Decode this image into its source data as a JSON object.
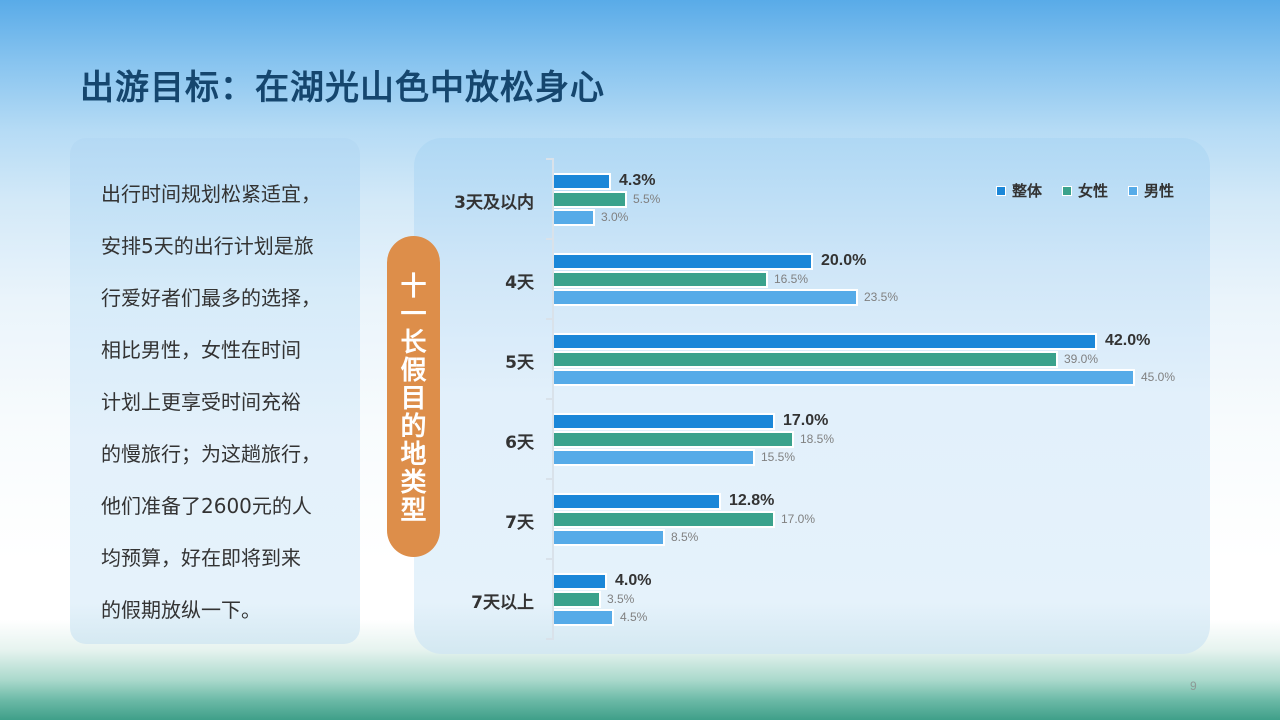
{
  "slide": {
    "title": "出游目标：在湖光山色中放松身心",
    "page_number": "9"
  },
  "text_card": {
    "lines": [
      "出行时间规划松紧适宜，",
      "安排5天的出行计划是旅",
      "行爱好者们最多的选择，",
      "相比男性，女性在时间",
      "计划上更享受时间充裕",
      "的慢旅行；为这趟旅行，",
      "他们准备了2600元的人",
      "均预算，好在即将到来",
      "的假期放纵一下。"
    ]
  },
  "side_label": {
    "chars": [
      "十",
      "一",
      "长",
      "假",
      "目",
      "的",
      "地",
      "类",
      "型"
    ],
    "color": "#dd8e4a"
  },
  "colors": {
    "overall": "#1b87d8",
    "female": "#3aa28c",
    "male": "#56abe8",
    "title": "#15466e"
  },
  "chart_data": {
    "type": "bar",
    "orientation": "horizontal",
    "title": "十一长假目的地类型",
    "categories": [
      "3天及以内",
      "4天",
      "5天",
      "6天",
      "7天",
      "7天以上"
    ],
    "series": [
      {
        "name": "整体",
        "values": [
          4.3,
          20.0,
          42.0,
          17.0,
          12.8,
          4.0
        ],
        "color": "#1b87d8"
      },
      {
        "name": "女性",
        "values": [
          5.5,
          16.5,
          39.0,
          18.5,
          17.0,
          3.5
        ],
        "color": "#3aa28c"
      },
      {
        "name": "男性",
        "values": [
          3.0,
          23.5,
          45.0,
          15.5,
          8.5,
          4.5
        ],
        "color": "#56abe8"
      }
    ],
    "value_labels": [
      [
        "4.3%",
        "5.5%",
        "3.0%"
      ],
      [
        "20.0%",
        "16.5%",
        "23.5%"
      ],
      [
        "42.0%",
        "39.0%",
        "45.0%"
      ],
      [
        "17.0%",
        "18.5%",
        "15.5%"
      ],
      [
        "12.8%",
        "17.0%",
        "8.5%"
      ],
      [
        "4.0%",
        "3.5%",
        "4.5%"
      ]
    ],
    "xlabel": "",
    "ylabel": "",
    "unit": "%",
    "xlim": [
      0,
      50
    ],
    "grid": false,
    "legend_position": "top-right",
    "legend": [
      "整体",
      "女性",
      "男性"
    ]
  }
}
